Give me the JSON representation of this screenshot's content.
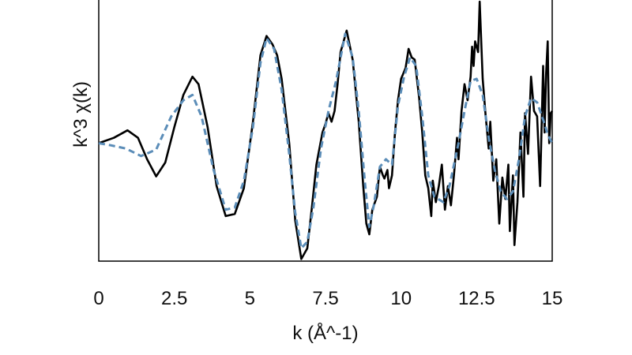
{
  "chart_data": {
    "type": "line",
    "xlabel": "k (Å^-1)",
    "ylabel": "k^3 χ(k)",
    "xlim": [
      0,
      15
    ],
    "ylim": [
      -1.1,
      1.35
    ],
    "x_ticks": [
      "0",
      "2.5",
      "5",
      "7.5",
      "10",
      "12.5",
      "15"
    ],
    "y_ticks_shown": false,
    "grid": false,
    "legend": "none",
    "series": [
      {
        "style": "solid",
        "color": "#000000",
        "points": [
          [
            0.0,
            0.0
          ],
          [
            0.5,
            0.05
          ],
          [
            0.95,
            0.12
          ],
          [
            1.3,
            0.05
          ],
          [
            1.6,
            -0.15
          ],
          [
            1.9,
            -0.31
          ],
          [
            2.2,
            -0.18
          ],
          [
            2.5,
            0.15
          ],
          [
            2.8,
            0.45
          ],
          [
            3.1,
            0.62
          ],
          [
            3.3,
            0.55
          ],
          [
            3.6,
            0.15
          ],
          [
            3.9,
            -0.4
          ],
          [
            4.2,
            -0.68
          ],
          [
            4.5,
            -0.66
          ],
          [
            4.8,
            -0.42
          ],
          [
            5.1,
            0.2
          ],
          [
            5.35,
            0.82
          ],
          [
            5.55,
            1.0
          ],
          [
            5.75,
            0.92
          ],
          [
            5.9,
            0.82
          ],
          [
            6.05,
            0.6
          ],
          [
            6.3,
            0.0
          ],
          [
            6.5,
            -0.72
          ],
          [
            6.7,
            -1.08
          ],
          [
            6.9,
            -0.98
          ],
          [
            7.05,
            -0.6
          ],
          [
            7.2,
            -0.2
          ],
          [
            7.4,
            0.1
          ],
          [
            7.5,
            0.18
          ],
          [
            7.6,
            0.28
          ],
          [
            7.7,
            0.2
          ],
          [
            7.8,
            0.3
          ],
          [
            7.9,
            0.55
          ],
          [
            8.0,
            0.85
          ],
          [
            8.2,
            1.05
          ],
          [
            8.4,
            0.78
          ],
          [
            8.6,
            0.2
          ],
          [
            8.75,
            -0.4
          ],
          [
            8.85,
            -0.75
          ],
          [
            8.95,
            -0.85
          ],
          [
            9.05,
            -0.62
          ],
          [
            9.2,
            -0.5
          ],
          [
            9.3,
            -0.22
          ],
          [
            9.4,
            -0.3
          ],
          [
            9.45,
            -0.33
          ],
          [
            9.55,
            -0.25
          ],
          [
            9.6,
            -0.42
          ],
          [
            9.7,
            -0.3
          ],
          [
            9.8,
            0.1
          ],
          [
            9.9,
            0.4
          ],
          [
            10.0,
            0.6
          ],
          [
            10.15,
            0.7
          ],
          [
            10.25,
            0.88
          ],
          [
            10.35,
            0.8
          ],
          [
            10.45,
            0.78
          ],
          [
            10.6,
            0.42
          ],
          [
            10.7,
            0.1
          ],
          [
            10.8,
            -0.3
          ],
          [
            10.9,
            -0.42
          ],
          [
            11.0,
            -0.68
          ],
          [
            11.05,
            -0.35
          ],
          [
            11.15,
            -0.55
          ],
          [
            11.25,
            -0.4
          ],
          [
            11.35,
            -0.2
          ],
          [
            11.45,
            -0.62
          ],
          [
            11.55,
            -0.4
          ],
          [
            11.65,
            -0.58
          ],
          [
            11.75,
            -0.3
          ],
          [
            11.85,
            0.05
          ],
          [
            11.9,
            -0.15
          ],
          [
            12.0,
            0.3
          ],
          [
            12.1,
            0.55
          ],
          [
            12.2,
            0.4
          ],
          [
            12.3,
            0.62
          ],
          [
            12.35,
            0.9
          ],
          [
            12.4,
            0.72
          ],
          [
            12.45,
            0.95
          ],
          [
            12.55,
            0.85
          ],
          [
            12.6,
            1.32
          ],
          [
            12.7,
            0.6
          ],
          [
            12.8,
            0.25
          ],
          [
            12.9,
            -0.05
          ],
          [
            12.95,
            0.2
          ],
          [
            13.05,
            -0.35
          ],
          [
            13.15,
            -0.15
          ],
          [
            13.25,
            -0.75
          ],
          [
            13.35,
            -0.32
          ],
          [
            13.45,
            -0.52
          ],
          [
            13.55,
            -0.2
          ],
          [
            13.6,
            -0.82
          ],
          [
            13.7,
            -0.3
          ],
          [
            13.75,
            -0.95
          ],
          [
            13.85,
            -0.55
          ],
          [
            13.95,
            0.1
          ],
          [
            14.05,
            -0.5
          ],
          [
            14.1,
            0.28
          ],
          [
            14.2,
            -0.1
          ],
          [
            14.3,
            0.62
          ],
          [
            14.4,
            0.3
          ],
          [
            14.5,
            0.25
          ],
          [
            14.6,
            -0.4
          ],
          [
            14.7,
            0.72
          ],
          [
            14.75,
            0.1
          ],
          [
            14.8,
            0.65
          ],
          [
            14.85,
            0.95
          ],
          [
            14.9,
            0.0
          ],
          [
            14.95,
            0.28
          ],
          [
            15.0,
            0.3
          ]
        ]
      },
      {
        "style": "dashed",
        "color": "#5b8db8",
        "points": [
          [
            0.0,
            0.0
          ],
          [
            0.4,
            -0.02
          ],
          [
            0.9,
            -0.05
          ],
          [
            1.4,
            -0.12
          ],
          [
            1.9,
            -0.06
          ],
          [
            2.4,
            0.25
          ],
          [
            2.8,
            0.4
          ],
          [
            3.1,
            0.45
          ],
          [
            3.4,
            0.25
          ],
          [
            3.8,
            -0.25
          ],
          [
            4.2,
            -0.62
          ],
          [
            4.5,
            -0.6
          ],
          [
            4.8,
            -0.35
          ],
          [
            5.1,
            0.15
          ],
          [
            5.35,
            0.75
          ],
          [
            5.55,
            0.98
          ],
          [
            5.8,
            0.88
          ],
          [
            6.05,
            0.5
          ],
          [
            6.3,
            -0.1
          ],
          [
            6.5,
            -0.65
          ],
          [
            6.7,
            -0.98
          ],
          [
            6.9,
            -0.92
          ],
          [
            7.1,
            -0.6
          ],
          [
            7.35,
            -0.05
          ],
          [
            7.6,
            0.3
          ],
          [
            7.85,
            0.58
          ],
          [
            8.15,
            1.02
          ],
          [
            8.4,
            0.8
          ],
          [
            8.6,
            0.3
          ],
          [
            8.8,
            -0.35
          ],
          [
            8.95,
            -0.78
          ],
          [
            9.1,
            -0.58
          ],
          [
            9.3,
            -0.22
          ],
          [
            9.5,
            -0.15
          ],
          [
            9.7,
            -0.2
          ],
          [
            9.9,
            0.35
          ],
          [
            10.1,
            0.62
          ],
          [
            10.3,
            0.8
          ],
          [
            10.5,
            0.72
          ],
          [
            10.7,
            0.25
          ],
          [
            10.9,
            -0.3
          ],
          [
            11.1,
            -0.5
          ],
          [
            11.4,
            -0.55
          ],
          [
            11.6,
            -0.4
          ],
          [
            11.9,
            0.0
          ],
          [
            12.1,
            0.3
          ],
          [
            12.3,
            0.58
          ],
          [
            12.5,
            0.6
          ],
          [
            12.7,
            0.45
          ],
          [
            12.9,
            0.05
          ],
          [
            13.1,
            -0.25
          ],
          [
            13.3,
            -0.45
          ],
          [
            13.5,
            -0.52
          ],
          [
            13.7,
            -0.45
          ],
          [
            13.9,
            -0.15
          ],
          [
            14.1,
            0.25
          ],
          [
            14.3,
            0.42
          ],
          [
            14.5,
            0.38
          ],
          [
            14.7,
            0.22
          ],
          [
            14.85,
            0.08
          ],
          [
            15.0,
            0.0
          ]
        ]
      }
    ]
  }
}
